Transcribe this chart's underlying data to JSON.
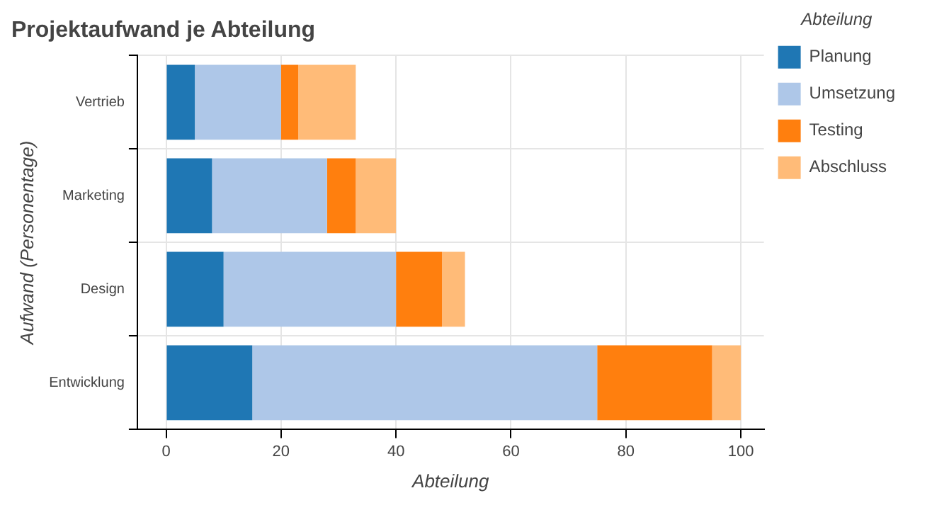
{
  "chart_data": {
    "type": "bar",
    "orientation": "horizontal",
    "stacked": true,
    "title": "Projektaufwand je Abteilung",
    "xlabel": "Abteilung",
    "ylabel": "Aufwand (Personentage)",
    "legend_title": "Abteilung",
    "categories": [
      "Vertrieb",
      "Marketing",
      "Design",
      "Entwicklung"
    ],
    "series": [
      {
        "name": "Planung",
        "color": "#1f77b4",
        "values": [
          5,
          8,
          10,
          15
        ]
      },
      {
        "name": "Umsetzung",
        "color": "#aec7e8",
        "values": [
          15,
          20,
          30,
          60
        ]
      },
      {
        "name": "Testing",
        "color": "#ff7f0e",
        "values": [
          3,
          5,
          8,
          20
        ]
      },
      {
        "name": "Abschluss",
        "color": "#ffbb78",
        "values": [
          10,
          7,
          4,
          5
        ]
      }
    ],
    "xlim": [
      -5,
      104
    ],
    "xticks": [
      0,
      20,
      40,
      60,
      80,
      100
    ],
    "grid": true,
    "legend": "right"
  }
}
